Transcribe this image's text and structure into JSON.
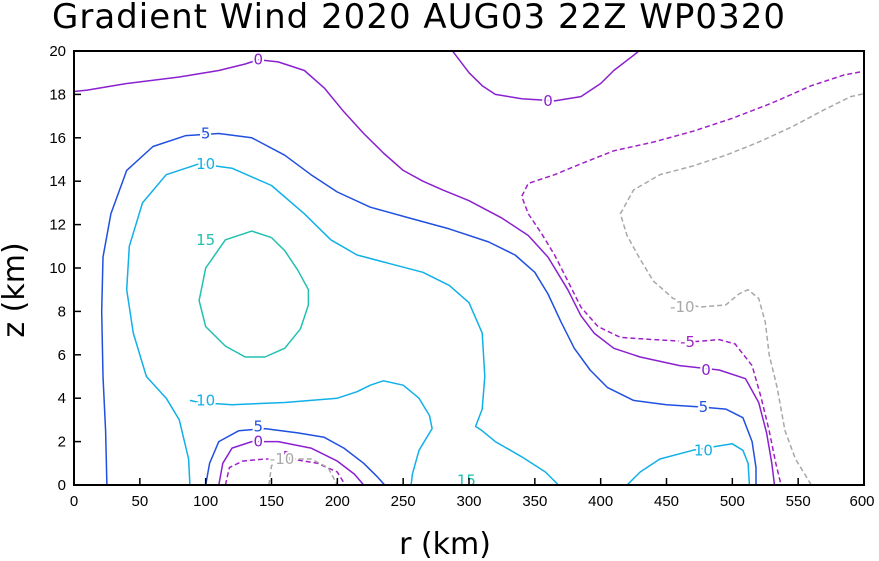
{
  "chart_data": {
    "type": "contour",
    "title": "Gradient Wind 2020 AUG03 22Z  WP0320",
    "xlabel": "r (km)",
    "ylabel": "z (km)",
    "xlim": [
      0,
      600
    ],
    "ylim": [
      0,
      20
    ],
    "xticks": [
      0,
      50,
      100,
      150,
      200,
      250,
      300,
      350,
      400,
      450,
      500,
      550,
      600
    ],
    "yticks": [
      0,
      2,
      4,
      6,
      8,
      10,
      12,
      14,
      16,
      18,
      20
    ],
    "grid": false,
    "colors": {
      "c15": "#20c0b0",
      "c10": "#10b0e8",
      "c5": "#2050e0",
      "c0": "#8a20d0",
      "cm5": "#a020c8",
      "cm10": "#a8a8a8"
    },
    "contours": [
      {
        "level": 0,
        "color": "c0",
        "dashed": false,
        "points": [
          [
            -5,
            18.1
          ],
          [
            10,
            18.2
          ],
          [
            40,
            18.5
          ],
          [
            80,
            18.8
          ],
          [
            110,
            19.1
          ],
          [
            130,
            19.4
          ],
          [
            140,
            19.6
          ],
          [
            155,
            19.5
          ],
          [
            175,
            19.1
          ],
          [
            190,
            18.3
          ],
          [
            205,
            17.2
          ],
          [
            220,
            16.2
          ],
          [
            235,
            15.3
          ],
          [
            250,
            14.5
          ],
          [
            265,
            14.0
          ],
          [
            280,
            13.6
          ],
          [
            300,
            13.1
          ],
          [
            325,
            12.3
          ],
          [
            345,
            11.5
          ],
          [
            360,
            10.5
          ],
          [
            375,
            9.0
          ],
          [
            385,
            7.8
          ],
          [
            395,
            7.0
          ],
          [
            410,
            6.3
          ],
          [
            430,
            5.9
          ],
          [
            460,
            5.5
          ],
          [
            490,
            5.3
          ],
          [
            510,
            4.9
          ],
          [
            520,
            3.8
          ],
          [
            526,
            2.4
          ],
          [
            530,
            1.0
          ],
          [
            532,
            0
          ]
        ]
      },
      {
        "level": 0,
        "color": "c0",
        "dashed": false,
        "points": [
          [
            280,
            20.6
          ],
          [
            290,
            19.8
          ],
          [
            300,
            19.0
          ],
          [
            310,
            18.4
          ],
          [
            320,
            18.0
          ],
          [
            340,
            17.8
          ],
          [
            365,
            17.7
          ],
          [
            385,
            17.9
          ],
          [
            400,
            18.5
          ],
          [
            410,
            19.1
          ],
          [
            425,
            19.8
          ],
          [
            435,
            20.3
          ]
        ]
      },
      {
        "level": 0,
        "color": "c0",
        "dashed": false,
        "points": [
          [
            110,
            0
          ],
          [
            113,
            1.0
          ],
          [
            120,
            1.7
          ],
          [
            135,
            2.0
          ],
          [
            155,
            2.0
          ],
          [
            180,
            1.7
          ],
          [
            200,
            1.1
          ],
          [
            213,
            0.5
          ],
          [
            220,
            0
          ]
        ]
      },
      {
        "level": 5,
        "color": "c5",
        "dashed": false,
        "points": [
          [
            25,
            0
          ],
          [
            24,
            2.5
          ],
          [
            22,
            5.0
          ],
          [
            21,
            8.0
          ],
          [
            22,
            10.5
          ],
          [
            28,
            12.5
          ],
          [
            40,
            14.5
          ],
          [
            60,
            15.6
          ],
          [
            85,
            16.1
          ],
          [
            110,
            16.2
          ],
          [
            135,
            16.0
          ],
          [
            160,
            15.2
          ],
          [
            180,
            14.3
          ],
          [
            200,
            13.5
          ],
          [
            225,
            12.8
          ],
          [
            255,
            12.3
          ],
          [
            285,
            11.8
          ],
          [
            315,
            11.2
          ],
          [
            335,
            10.6
          ],
          [
            350,
            9.8
          ],
          [
            360,
            8.8
          ],
          [
            370,
            7.5
          ],
          [
            380,
            6.3
          ],
          [
            392,
            5.3
          ],
          [
            405,
            4.5
          ],
          [
            425,
            3.9
          ],
          [
            450,
            3.7
          ],
          [
            475,
            3.6
          ],
          [
            495,
            3.5
          ],
          [
            508,
            3.1
          ],
          [
            515,
            2.0
          ],
          [
            518,
            0.8
          ],
          [
            518,
            0
          ]
        ]
      },
      {
        "level": 5,
        "color": "c5",
        "dashed": false,
        "points": [
          [
            100,
            0
          ],
          [
            103,
            1.0
          ],
          [
            110,
            2.0
          ],
          [
            125,
            2.5
          ],
          [
            145,
            2.6
          ],
          [
            170,
            2.4
          ],
          [
            190,
            2.2
          ],
          [
            205,
            1.7
          ],
          [
            220,
            1.0
          ],
          [
            230,
            0.4
          ],
          [
            236,
            0
          ]
        ]
      },
      {
        "level": 10,
        "color": "c10",
        "dashed": false,
        "points": [
          [
            88,
            0
          ],
          [
            87,
            1.2
          ],
          [
            80,
            3.0
          ],
          [
            70,
            4.0
          ],
          [
            55,
            5.0
          ],
          [
            45,
            7.0
          ],
          [
            40,
            9.0
          ],
          [
            42,
            11.0
          ],
          [
            52,
            13.0
          ],
          [
            70,
            14.3
          ],
          [
            95,
            14.8
          ],
          [
            120,
            14.6
          ],
          [
            150,
            13.8
          ],
          [
            175,
            12.5
          ],
          [
            195,
            11.3
          ],
          [
            215,
            10.6
          ],
          [
            240,
            10.2
          ],
          [
            265,
            9.8
          ],
          [
            285,
            9.2
          ],
          [
            300,
            8.4
          ],
          [
            310,
            7.0
          ],
          [
            312,
            5.0
          ],
          [
            310,
            3.5
          ],
          [
            305,
            2.7
          ],
          [
            310,
            2.5
          ],
          [
            320,
            2.0
          ],
          [
            340,
            1.3
          ],
          [
            358,
            0.6
          ],
          [
            368,
            0
          ]
        ]
      },
      {
        "level": 10,
        "color": "c10",
        "dashed": false,
        "points": [
          [
            88,
            3.9
          ],
          [
            95,
            3.8
          ],
          [
            120,
            3.7
          ],
          [
            160,
            3.8
          ],
          [
            200,
            4.0
          ],
          [
            215,
            4.3
          ],
          [
            225,
            4.6
          ],
          [
            235,
            4.8
          ],
          [
            250,
            4.6
          ],
          [
            262,
            4.0
          ],
          [
            270,
            3.2
          ],
          [
            272,
            2.6
          ],
          [
            262,
            1.6
          ],
          [
            257,
            0.5
          ],
          [
            256,
            0
          ]
        ]
      },
      {
        "level": 10,
        "color": "c10",
        "dashed": false,
        "points": [
          [
            420,
            0
          ],
          [
            430,
            0.6
          ],
          [
            445,
            1.2
          ],
          [
            470,
            1.6
          ],
          [
            490,
            1.8
          ],
          [
            500,
            1.9
          ],
          [
            508,
            1.6
          ],
          [
            512,
            1.0
          ],
          [
            513,
            0
          ]
        ]
      },
      {
        "level": 15,
        "color": "c15",
        "dashed": false,
        "points": [
          [
            150,
            11.4
          ],
          [
            135,
            11.7
          ],
          [
            115,
            11.3
          ],
          [
            100,
            10.0
          ],
          [
            95,
            8.5
          ],
          [
            100,
            7.3
          ],
          [
            115,
            6.4
          ],
          [
            130,
            5.9
          ],
          [
            145,
            5.9
          ],
          [
            160,
            6.3
          ],
          [
            172,
            7.2
          ],
          [
            178,
            8.3
          ],
          [
            178,
            9.0
          ],
          [
            170,
            9.9
          ],
          [
            160,
            10.8
          ],
          [
            150,
            11.4
          ]
        ]
      },
      {
        "level": -5,
        "color": "cm5",
        "dashed": true,
        "points": [
          [
            603,
            19.1
          ],
          [
            585,
            18.9
          ],
          [
            560,
            18.4
          ],
          [
            530,
            17.6
          ],
          [
            500,
            16.9
          ],
          [
            470,
            16.3
          ],
          [
            440,
            15.8
          ],
          [
            410,
            15.4
          ],
          [
            385,
            14.8
          ],
          [
            365,
            14.3
          ],
          [
            345,
            13.9
          ],
          [
            340,
            13.3
          ],
          [
            345,
            12.5
          ],
          [
            355,
            11.6
          ],
          [
            365,
            10.6
          ],
          [
            375,
            9.4
          ],
          [
            385,
            8.2
          ],
          [
            398,
            7.3
          ],
          [
            415,
            6.8
          ],
          [
            440,
            6.7
          ],
          [
            470,
            6.6
          ],
          [
            490,
            6.7
          ],
          [
            502,
            6.5
          ],
          [
            515,
            5.5
          ],
          [
            522,
            4.0
          ],
          [
            528,
            2.5
          ],
          [
            533,
            1.0
          ],
          [
            537,
            0
          ]
        ]
      },
      {
        "level": -5,
        "color": "cm5",
        "dashed": true,
        "points": [
          [
            115,
            0
          ],
          [
            118,
            0.8
          ],
          [
            128,
            1.1
          ],
          [
            145,
            1.2
          ],
          [
            165,
            1.2
          ],
          [
            185,
            1.0
          ],
          [
            200,
            0.6
          ],
          [
            206,
            0
          ]
        ]
      },
      {
        "level": -10,
        "color": "cm10",
        "dashed": true,
        "points": [
          [
            605,
            18.1
          ],
          [
            590,
            17.9
          ],
          [
            570,
            17.3
          ],
          [
            545,
            16.5
          ],
          [
            520,
            15.8
          ],
          [
            495,
            15.2
          ],
          [
            470,
            14.7
          ],
          [
            445,
            14.3
          ],
          [
            425,
            13.6
          ],
          [
            415,
            12.5
          ],
          [
            420,
            11.5
          ],
          [
            430,
            10.4
          ],
          [
            440,
            9.4
          ],
          [
            455,
            8.6
          ],
          [
            475,
            8.2
          ],
          [
            495,
            8.3
          ],
          [
            505,
            8.8
          ],
          [
            512,
            9.0
          ],
          [
            520,
            8.6
          ],
          [
            525,
            7.5
          ],
          [
            528,
            6.0
          ],
          [
            534,
            4.5
          ],
          [
            540,
            2.5
          ],
          [
            548,
            1.2
          ],
          [
            560,
            0
          ]
        ]
      },
      {
        "level": -10,
        "color": "cm10",
        "dashed": true,
        "points": [
          [
            148,
            0
          ],
          [
            150,
            0.9
          ],
          [
            165,
            1.2
          ],
          [
            180,
            1.2
          ],
          [
            193,
            0.8
          ],
          [
            200,
            0
          ]
        ]
      }
    ],
    "contour_labels": [
      {
        "text": "0",
        "x": 140,
        "y": 19.6,
        "color": "c0"
      },
      {
        "text": "0",
        "x": 360,
        "y": 17.7,
        "color": "c0"
      },
      {
        "text": "5",
        "x": 100,
        "y": 16.2,
        "color": "c5"
      },
      {
        "text": "10",
        "x": 100,
        "y": 14.8,
        "color": "c10"
      },
      {
        "text": "15",
        "x": 100,
        "y": 11.3,
        "color": "c15"
      },
      {
        "text": "10",
        "x": 100,
        "y": 3.9,
        "color": "c10"
      },
      {
        "text": "5",
        "x": 140,
        "y": 2.7,
        "color": "c5"
      },
      {
        "text": "0",
        "x": 140,
        "y": 2.0,
        "color": "c0"
      },
      {
        "text": "-5",
        "x": 160,
        "y": 1.3,
        "color": "cm5"
      },
      {
        "text": "-10",
        "x": 158,
        "y": 1.2,
        "color": "cm10"
      },
      {
        "text": "15",
        "x": 298,
        "y": 0.2,
        "color": "c15"
      },
      {
        "text": "-10",
        "x": 462,
        "y": 8.2,
        "color": "cm10"
      },
      {
        "text": "-5",
        "x": 466,
        "y": 6.6,
        "color": "cm5"
      },
      {
        "text": "0",
        "x": 480,
        "y": 5.3,
        "color": "c0"
      },
      {
        "text": "5",
        "x": 478,
        "y": 3.6,
        "color": "c5"
      },
      {
        "text": "10",
        "x": 478,
        "y": 1.6,
        "color": "c10"
      }
    ]
  }
}
